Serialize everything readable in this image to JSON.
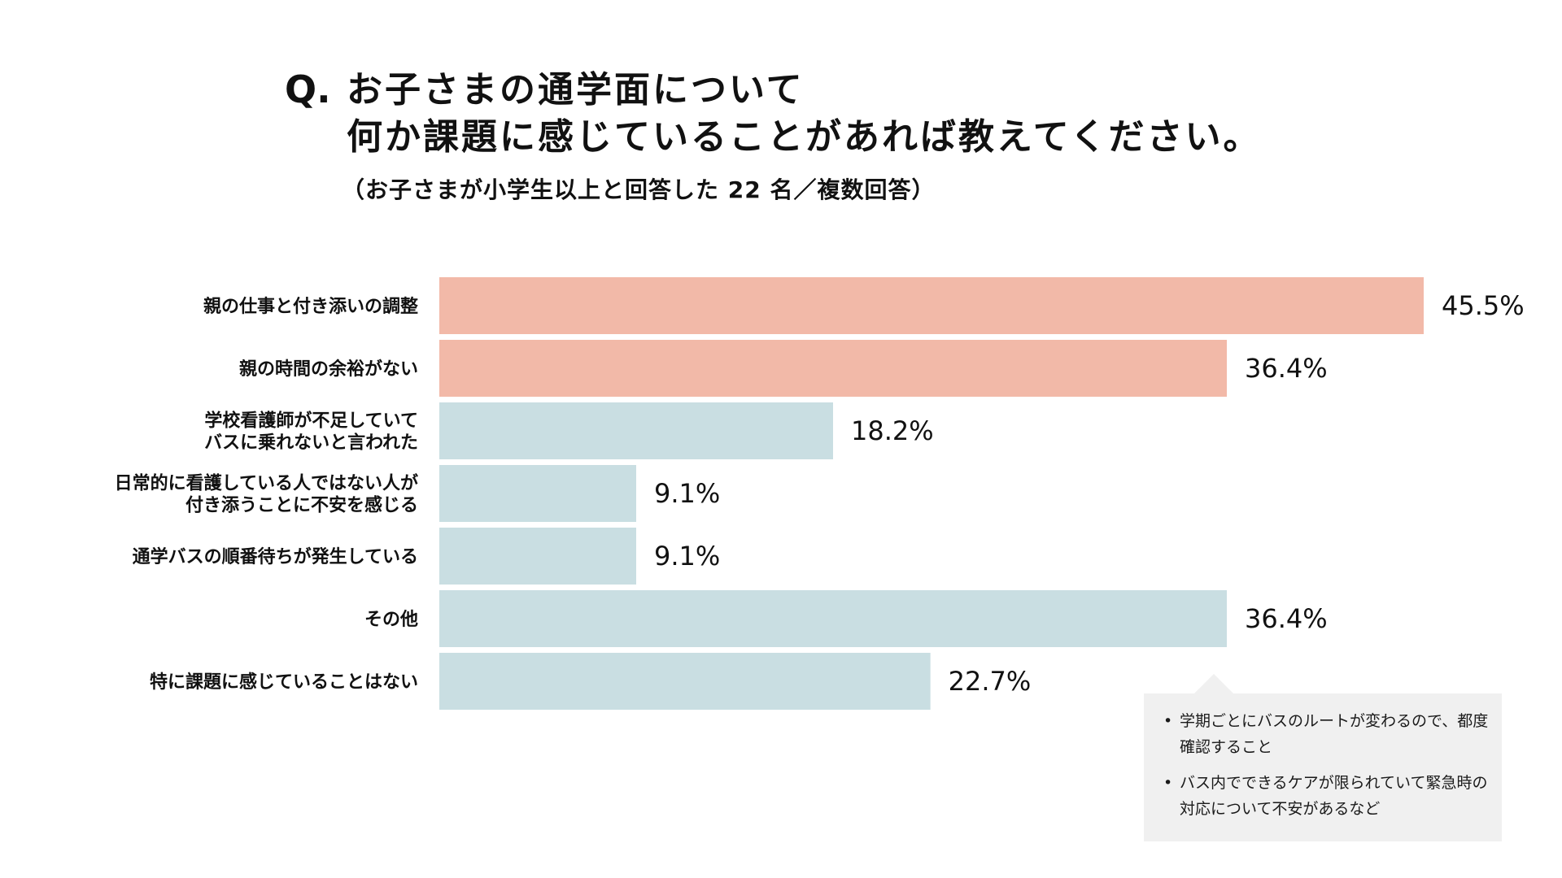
{
  "title": {
    "q_mark": "Q.",
    "line1": "お子さまの通学面について",
    "line2": "何か課題に感じていることがあれば教えてください。",
    "subtitle": "（お子さまが小学生以上と回答した 22 名／複数回答）"
  },
  "colors": {
    "highlight": "#f2b9a8",
    "normal": "#c9dee2",
    "text": "#111111",
    "note_bg": "#f0f0f0"
  },
  "chart_data": {
    "type": "bar",
    "orientation": "horizontal",
    "title": "お子さまの通学面について何か課題に感じていることがあれば教えてください。",
    "unit": "%",
    "categories": [
      [
        "親の仕事と付き添いの調整"
      ],
      [
        "親の時間の余裕がない"
      ],
      [
        "学校看護師が不足していて",
        "バスに乗れないと言われた"
      ],
      [
        "日常的に看護している人ではない人が",
        "付き添うことに不安を感じる"
      ],
      [
        "通学バスの順番待ちが発生している"
      ],
      [
        "その他"
      ],
      [
        "特に課題に感じていることはない"
      ]
    ],
    "values": [
      45.5,
      36.4,
      18.2,
      9.1,
      9.1,
      36.4,
      22.7
    ],
    "value_labels": [
      "45.5%",
      "36.4%",
      "18.2%",
      "9.1%",
      "9.1%",
      "36.4%",
      "22.7%"
    ],
    "highlighted": [
      true,
      true,
      false,
      false,
      false,
      false,
      false
    ],
    "xlim": [
      0,
      45.5
    ],
    "grid": false,
    "legend": "none"
  },
  "note": {
    "items": [
      "学期ごとにバスのルートが変わるので、都度確認すること",
      "バス内でできるケアが限られていて緊急時の対応について不安があるなど"
    ],
    "bullet": "•"
  }
}
